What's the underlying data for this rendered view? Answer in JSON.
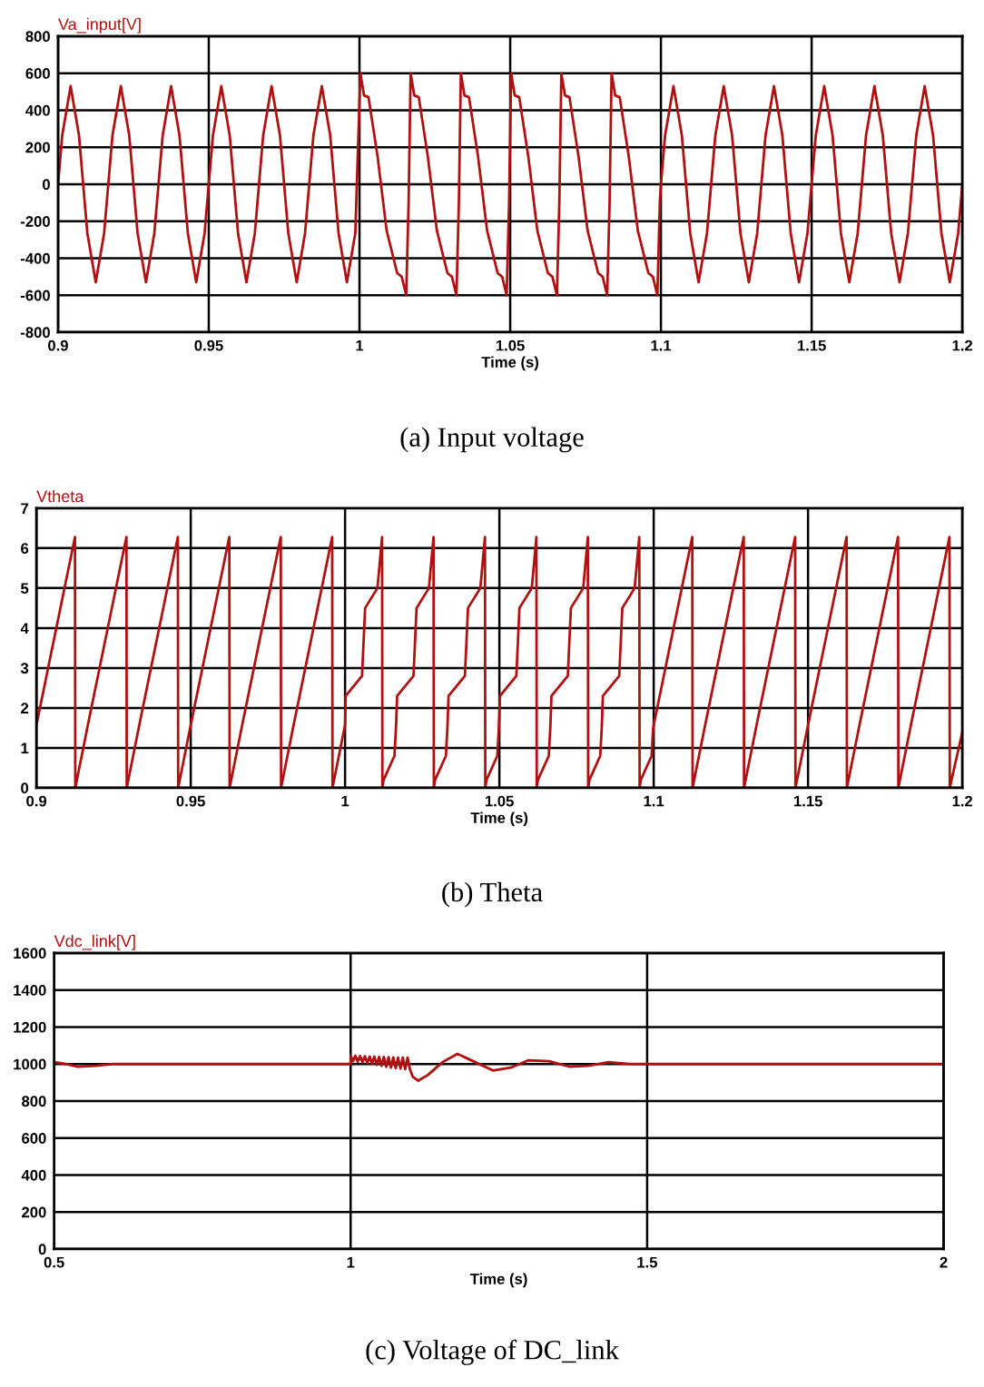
{
  "chart_data": [
    {
      "type": "line",
      "title": "(a) Input voltage",
      "xlabel": "Time (s)",
      "xlim": [
        0.9,
        1.2
      ],
      "xticks": [
        0.9,
        0.95,
        1,
        1.05,
        1.1,
        1.15,
        1.2
      ],
      "ylim": [
        -800,
        800
      ],
      "yticks": [
        -800,
        -600,
        -400,
        -200,
        0,
        200,
        400,
        600,
        800
      ],
      "grid": true,
      "legend": "top left",
      "marker": "none",
      "line_style": "solid",
      "series": [
        {
          "name": "Va_input[V]",
          "color": "#b01010",
          "x": [
            0.9,
            0.90139,
            0.90417,
            0.90694,
            0.90972,
            0.9125,
            0.91528,
            0.91667,
            0.91806,
            0.92083,
            0.92361,
            0.92639,
            0.92917,
            0.93194,
            0.93333,
            0.93472,
            0.9375,
            0.94028,
            0.94306,
            0.94583,
            0.94861,
            0.95,
            0.95139,
            0.95417,
            0.95694,
            0.95972,
            0.9625,
            0.96528,
            0.96667,
            0.96806,
            0.97083,
            0.97361,
            0.97639,
            0.97917,
            0.98194,
            0.98333,
            0.98472,
            0.9875,
            0.99028,
            0.99306,
            0.99583,
            0.99861,
            1.0003,
            1.0015,
            1.003,
            1.006,
            1.009,
            1.0125,
            1.014,
            1.0155,
            1.0163,
            1.01697,
            1.01817,
            1.01967,
            1.02267,
            1.02567,
            1.02917,
            1.03067,
            1.03217,
            1.03297,
            1.03363,
            1.03483,
            1.03633,
            1.03933,
            1.04233,
            1.04583,
            1.04733,
            1.04883,
            1.04963,
            1.0503,
            1.0515,
            1.053,
            1.056,
            1.059,
            1.0625,
            1.064,
            1.0655,
            1.0663,
            1.06697,
            1.06817,
            1.06967,
            1.07267,
            1.07567,
            1.07917,
            1.08067,
            1.08217,
            1.08297,
            1.08363,
            1.08483,
            1.08633,
            1.08933,
            1.09233,
            1.09583,
            1.09733,
            1.09883,
            1.09963,
            1.1,
            1.10139,
            1.10417,
            1.10694,
            1.10972,
            1.1125,
            1.11528,
            1.11667,
            1.11806,
            1.12083,
            1.12361,
            1.12639,
            1.12917,
            1.13194,
            1.13333,
            1.13472,
            1.1375,
            1.14028,
            1.14306,
            1.14583,
            1.14861,
            1.15,
            1.15139,
            1.15417,
            1.15694,
            1.15972,
            1.1625,
            1.16528,
            1.16667,
            1.16806,
            1.17083,
            1.17361,
            1.17639,
            1.17917,
            1.18194,
            1.18333,
            1.18472,
            1.1875,
            1.19028,
            1.19306,
            1.19583,
            1.19861,
            1.2
          ],
          "values": [
            0,
            265,
            530,
            265,
            -265,
            -530,
            -265,
            0,
            265,
            530,
            265,
            -265,
            -530,
            -265,
            0,
            265,
            530,
            265,
            -265,
            -530,
            -265,
            0,
            265,
            530,
            265,
            -265,
            -530,
            -265,
            0,
            265,
            530,
            265,
            -265,
            -530,
            -265,
            0,
            265,
            530,
            265,
            -265,
            -530,
            -265,
            600,
            480,
            470,
            150,
            -250,
            -480,
            -500,
            -600,
            -100,
            600,
            480,
            470,
            150,
            -250,
            -480,
            -500,
            -600,
            -100,
            600,
            480,
            470,
            150,
            -250,
            -480,
            -500,
            -600,
            -100,
            600,
            480,
            470,
            150,
            -250,
            -480,
            -500,
            -600,
            -100,
            600,
            480,
            470,
            150,
            -250,
            -480,
            -500,
            -600,
            -100,
            600,
            480,
            470,
            150,
            -250,
            -480,
            -500,
            -600,
            -100,
            0,
            265,
            530,
            265,
            -265,
            -530,
            -265,
            0,
            265,
            530,
            265,
            -265,
            -530,
            -265,
            0,
            265,
            530,
            265,
            -265,
            -530,
            -265,
            0,
            265,
            530,
            265,
            -265,
            -530,
            -265,
            0,
            265,
            530,
            265,
            -265,
            -530,
            -265,
            0,
            265,
            530,
            265,
            -265,
            -530,
            -265,
            0
          ]
        }
      ]
    },
    {
      "type": "line",
      "title": "(b) Theta",
      "xlabel": "Time (s)",
      "xlim": [
        0.9,
        1.2
      ],
      "xticks": [
        0.9,
        0.95,
        1,
        1.05,
        1.1,
        1.15,
        1.2
      ],
      "ylim": [
        0,
        7
      ],
      "yticks": [
        0,
        1,
        2,
        3,
        4,
        5,
        6,
        7
      ],
      "grid": true,
      "legend": "top left",
      "marker": "none",
      "line_style": "solid",
      "series": [
        {
          "name": "Vtheta",
          "color": "#b01010",
          "x": [
            0.9,
            0.9125,
            0.9126,
            0.91667,
            0.92917,
            0.92927,
            0.93333,
            0.94583,
            0.94593,
            0.95,
            0.9625,
            0.9626,
            0.96667,
            0.97917,
            0.97927,
            0.98333,
            0.99583,
            0.99593,
            1.0,
            1.0002,
            1.0055,
            1.0065,
            1.0105,
            1.012,
            1.0121,
            1.0125,
            1.016,
            1.0165,
            1.01687,
            1.02217,
            1.02317,
            1.02717,
            1.02867,
            1.02877,
            1.02917,
            1.03267,
            1.03317,
            1.03353,
            1.03883,
            1.03983,
            1.04383,
            1.04533,
            1.04543,
            1.04583,
            1.04933,
            1.04983,
            1.0502,
            1.0555,
            1.0565,
            1.0605,
            1.062,
            1.0621,
            1.0625,
            1.066,
            1.0665,
            1.06687,
            1.07217,
            1.07317,
            1.07717,
            1.07867,
            1.07877,
            1.07917,
            1.08267,
            1.08317,
            1.08353,
            1.08883,
            1.08983,
            1.09383,
            1.09533,
            1.09543,
            1.09583,
            1.09933,
            1.09983,
            1.1,
            1.1125,
            1.1126,
            1.11667,
            1.12917,
            1.12927,
            1.13333,
            1.14583,
            1.14593,
            1.15,
            1.1625,
            1.1626,
            1.16667,
            1.17917,
            1.17927,
            1.18333,
            1.19583,
            1.19593,
            1.2
          ],
          "values": [
            1.57,
            6.28,
            0,
            1.57,
            6.28,
            0,
            1.57,
            6.28,
            0,
            1.57,
            6.28,
            0,
            1.57,
            6.28,
            0,
            1.57,
            6.28,
            0,
            1.57,
            2.3,
            2.8,
            4.5,
            5.0,
            6.28,
            0,
            0.2,
            0.8,
            1.5,
            2.3,
            2.8,
            4.5,
            5.0,
            6.28,
            0,
            0.2,
            0.8,
            1.5,
            2.3,
            2.8,
            4.5,
            5.0,
            6.28,
            0,
            0.2,
            0.8,
            1.5,
            2.3,
            2.8,
            4.5,
            5.0,
            6.28,
            0,
            0.2,
            0.8,
            1.5,
            2.3,
            2.8,
            4.5,
            5.0,
            6.28,
            0,
            0.2,
            0.8,
            1.5,
            2.3,
            2.8,
            4.5,
            5.0,
            6.28,
            0,
            0.2,
            0.8,
            1.5,
            1.57,
            6.28,
            0,
            1.57,
            6.28,
            0,
            1.57,
            6.28,
            0,
            1.57,
            6.28,
            0,
            1.57,
            6.28,
            0,
            1.57,
            6.28,
            0,
            1.4
          ]
        }
      ]
    },
    {
      "type": "line",
      "title": "(c) Voltage of DC_link",
      "xlabel": "Time (s)",
      "xlim": [
        0.5,
        2
      ],
      "xticks": [
        0.5,
        1,
        1.5,
        2
      ],
      "ylim": [
        0,
        1600
      ],
      "yticks": [
        0,
        200,
        400,
        600,
        800,
        1000,
        1200,
        1400,
        1600
      ],
      "grid": true,
      "legend": "top left",
      "marker": "none",
      "line_style": "solid",
      "series": [
        {
          "name": "Vdc_link[V]",
          "color": "#b01010",
          "x": [
            0.5,
            0.52,
            0.54,
            0.57,
            0.6,
            0.7,
            0.8,
            0.9,
            1.0,
            1.0,
            1.004,
            1.008,
            1.012,
            1.016,
            1.02,
            1.024,
            1.028,
            1.032,
            1.036,
            1.04,
            1.044,
            1.048,
            1.052,
            1.056,
            1.06,
            1.064,
            1.068,
            1.072,
            1.076,
            1.08,
            1.084,
            1.088,
            1.092,
            1.096,
            1.1,
            1.105,
            1.114,
            1.13,
            1.155,
            1.18,
            1.21,
            1.24,
            1.27,
            1.3,
            1.335,
            1.37,
            1.4,
            1.435,
            1.47,
            1.5,
            1.6,
            1.7,
            1.8,
            1.9,
            2.0
          ],
          "values": [
            1010,
            1000,
            985,
            990,
            1000,
            1000,
            1000,
            1000,
            1000,
            1045,
            1015,
            1045,
            1012,
            1043,
            1010,
            1042,
            1005,
            1040,
            1000,
            1040,
            995,
            1038,
            990,
            1038,
            985,
            1037,
            980,
            1036,
            978,
            1035,
            975,
            1035,
            972,
            1035,
            970,
            930,
            910,
            940,
            1010,
            1055,
            1010,
            965,
            980,
            1020,
            1015,
            985,
            990,
            1010,
            1000,
            1000,
            1000,
            1000,
            1000,
            1000,
            1000
          ]
        }
      ]
    }
  ]
}
